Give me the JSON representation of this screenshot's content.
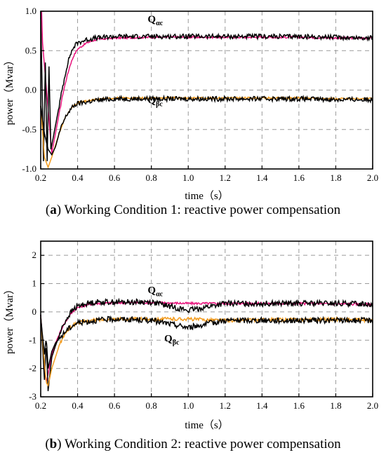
{
  "chart_data": [
    {
      "type": "line",
      "panel": "a",
      "caption_label": "a",
      "caption_text": "Working Condition 1: reactive power compensation",
      "xlabel": "time（s）",
      "ylabel": "power（Mvar）",
      "xlim": [
        0.2,
        2.0
      ],
      "ylim": [
        -1.0,
        1.0
      ],
      "x_ticks": [
        "0.2",
        "0.4",
        "0.6",
        "0.8",
        "1.0",
        "1.2",
        "1.4",
        "1.6",
        "1.8",
        "2.0"
      ],
      "y_ticks": [
        "-1.0",
        "-0.5",
        "0.0",
        "0.5",
        "1.0"
      ],
      "grid": true,
      "annotations": [
        {
          "main": "Q",
          "sub": "αc",
          "x": 0.78,
          "y": 0.86
        },
        {
          "main": "Q",
          "sub": "βc",
          "x": 0.78,
          "y": -0.17
        }
      ],
      "series": [
        {
          "color": "#e8127c",
          "values": [
            [
              0.2,
              -0.3
            ],
            [
              0.22,
              -0.8
            ],
            [
              0.24,
              -0.95
            ],
            [
              0.26,
              -0.8
            ],
            [
              0.28,
              -0.55
            ],
            [
              0.3,
              -0.3
            ],
            [
              0.32,
              -0.05
            ],
            [
              0.34,
              0.15
            ],
            [
              0.36,
              0.32
            ],
            [
              0.38,
              0.44
            ],
            [
              0.4,
              0.52
            ],
            [
              0.45,
              0.6
            ],
            [
              0.5,
              0.64
            ],
            [
              0.6,
              0.66
            ],
            [
              0.8,
              0.67
            ],
            [
              1.0,
              0.67
            ],
            [
              1.2,
              0.67
            ],
            [
              1.4,
              0.67
            ],
            [
              1.6,
              0.67
            ],
            [
              1.8,
              0.66
            ],
            [
              2.0,
              0.66
            ]
          ],
          "noise": 0.012,
          "spikes": [
            [
              0.2,
              0.9
            ],
            [
              0.205,
              1.0
            ],
            [
              0.21,
              0.6
            ]
          ]
        },
        {
          "color": "#000000",
          "values": [
            [
              0.2,
              -0.2
            ],
            [
              0.22,
              -0.3
            ],
            [
              0.24,
              -0.6
            ],
            [
              0.26,
              -0.7
            ],
            [
              0.28,
              -0.45
            ],
            [
              0.3,
              -0.2
            ],
            [
              0.32,
              0.05
            ],
            [
              0.34,
              0.28
            ],
            [
              0.36,
              0.45
            ],
            [
              0.38,
              0.55
            ],
            [
              0.4,
              0.6
            ],
            [
              0.45,
              0.64
            ],
            [
              0.5,
              0.66
            ],
            [
              0.6,
              0.68
            ],
            [
              0.8,
              0.68
            ],
            [
              1.0,
              0.68
            ],
            [
              1.2,
              0.68
            ],
            [
              1.4,
              0.68
            ],
            [
              1.6,
              0.68
            ],
            [
              1.8,
              0.67
            ],
            [
              2.0,
              0.66
            ]
          ],
          "noise": 0.03,
          "spikes": [
            [
              0.2,
              1.0
            ],
            [
              0.215,
              -0.9
            ],
            [
              0.225,
              0.35
            ],
            [
              0.235,
              -0.9
            ],
            [
              0.245,
              0.3
            ],
            [
              0.255,
              -0.75
            ]
          ]
        },
        {
          "color": "#f39c1f",
          "values": [
            [
              0.2,
              -0.2
            ],
            [
              0.22,
              -0.85
            ],
            [
              0.24,
              -0.98
            ],
            [
              0.26,
              -0.85
            ],
            [
              0.28,
              -0.7
            ],
            [
              0.3,
              -0.55
            ],
            [
              0.32,
              -0.42
            ],
            [
              0.34,
              -0.32
            ],
            [
              0.36,
              -0.25
            ],
            [
              0.38,
              -0.2
            ],
            [
              0.4,
              -0.16
            ],
            [
              0.5,
              -0.12
            ],
            [
              0.6,
              -0.1
            ],
            [
              0.8,
              -0.1
            ],
            [
              1.0,
              -0.1
            ],
            [
              1.2,
              -0.1
            ],
            [
              1.4,
              -0.1
            ],
            [
              1.6,
              -0.1
            ],
            [
              1.8,
              -0.11
            ],
            [
              2.0,
              -0.11
            ]
          ],
          "noise": 0.012,
          "spikes": []
        },
        {
          "color": "#000000",
          "values": [
            [
              0.2,
              -0.2
            ],
            [
              0.22,
              -0.55
            ],
            [
              0.24,
              -0.75
            ],
            [
              0.26,
              -0.82
            ],
            [
              0.28,
              -0.72
            ],
            [
              0.3,
              -0.55
            ],
            [
              0.32,
              -0.42
            ],
            [
              0.34,
              -0.32
            ],
            [
              0.36,
              -0.25
            ],
            [
              0.38,
              -0.2
            ],
            [
              0.4,
              -0.17
            ],
            [
              0.5,
              -0.13
            ],
            [
              0.6,
              -0.11
            ],
            [
              0.8,
              -0.11
            ],
            [
              1.0,
              -0.11
            ],
            [
              1.2,
              -0.11
            ],
            [
              1.4,
              -0.11
            ],
            [
              1.6,
              -0.11
            ],
            [
              1.8,
              -0.12
            ],
            [
              2.0,
              -0.12
            ]
          ],
          "noise": 0.03,
          "spikes": []
        }
      ]
    },
    {
      "type": "line",
      "panel": "b",
      "caption_label": "b",
      "caption_text": "Working Condition 2: reactive power compensation",
      "xlabel": "time（s）",
      "ylabel": "power（Mvar）",
      "xlim": [
        0.2,
        2.0
      ],
      "ylim": [
        -3,
        2.5
      ],
      "x_ticks": [
        "0.2",
        "0.4",
        "0.6",
        "0.8",
        "1.0",
        "1.2",
        "1.4",
        "1.6",
        "1.8",
        "2.0"
      ],
      "y_ticks": [
        "-3",
        "-2",
        "-1",
        "0",
        "1",
        "2"
      ],
      "grid": true,
      "annotations": [
        {
          "main": "Q",
          "sub": "αc",
          "x": 0.78,
          "y": 0.65
        },
        {
          "main": "Q",
          "sub": "βc",
          "x": 0.87,
          "y": -1.05
        }
      ],
      "series": [
        {
          "color": "#e8127c",
          "values": [
            [
              0.2,
              -0.1
            ],
            [
              0.22,
              -2.0
            ],
            [
              0.23,
              -2.5
            ],
            [
              0.24,
              -2.2
            ],
            [
              0.26,
              -1.5
            ],
            [
              0.28,
              -1.1
            ],
            [
              0.3,
              -0.8
            ],
            [
              0.32,
              -0.5
            ],
            [
              0.34,
              -0.3
            ],
            [
              0.36,
              -0.1
            ],
            [
              0.38,
              0.05
            ],
            [
              0.4,
              0.15
            ],
            [
              0.45,
              0.25
            ],
            [
              0.5,
              0.3
            ],
            [
              0.6,
              0.32
            ],
            [
              0.8,
              0.33
            ],
            [
              1.0,
              0.3
            ],
            [
              1.2,
              0.3
            ],
            [
              1.4,
              0.3
            ],
            [
              1.6,
              0.3
            ],
            [
              1.8,
              0.28
            ],
            [
              2.0,
              0.27
            ]
          ],
          "noise": 0.04,
          "spikes": []
        },
        {
          "color": "#000000",
          "values": [
            [
              0.2,
              -0.1
            ],
            [
              0.22,
              -2.4
            ],
            [
              0.23,
              -1.0
            ],
            [
              0.24,
              -2.8
            ],
            [
              0.26,
              -1.6
            ],
            [
              0.28,
              -1.2
            ],
            [
              0.3,
              -0.85
            ],
            [
              0.32,
              -0.5
            ],
            [
              0.34,
              -0.25
            ],
            [
              0.36,
              -0.05
            ],
            [
              0.38,
              0.1
            ],
            [
              0.4,
              0.2
            ],
            [
              0.45,
              0.3
            ],
            [
              0.5,
              0.35
            ],
            [
              0.6,
              0.35
            ],
            [
              0.8,
              0.35
            ],
            [
              1.0,
              0.05
            ],
            [
              1.2,
              0.3
            ],
            [
              1.4,
              0.3
            ],
            [
              1.6,
              0.3
            ],
            [
              1.8,
              0.3
            ],
            [
              2.0,
              0.28
            ]
          ],
          "noise": 0.1,
          "spikes": []
        },
        {
          "color": "#f39c1f",
          "values": [
            [
              0.2,
              -0.2
            ],
            [
              0.22,
              -1.8
            ],
            [
              0.23,
              -2.5
            ],
            [
              0.24,
              -2.6
            ],
            [
              0.26,
              -2.0
            ],
            [
              0.28,
              -1.6
            ],
            [
              0.3,
              -1.2
            ],
            [
              0.32,
              -0.9
            ],
            [
              0.34,
              -0.7
            ],
            [
              0.36,
              -0.55
            ],
            [
              0.38,
              -0.45
            ],
            [
              0.4,
              -0.38
            ],
            [
              0.5,
              -0.28
            ],
            [
              0.6,
              -0.25
            ],
            [
              0.8,
              -0.25
            ],
            [
              1.0,
              -0.25
            ],
            [
              1.2,
              -0.3
            ],
            [
              1.4,
              -0.28
            ],
            [
              1.6,
              -0.27
            ],
            [
              1.8,
              -0.26
            ],
            [
              2.0,
              -0.3
            ]
          ],
          "noise": 0.06,
          "spikes": []
        },
        {
          "color": "#000000",
          "values": [
            [
              0.2,
              -0.2
            ],
            [
              0.22,
              -1.5
            ],
            [
              0.23,
              -0.9
            ],
            [
              0.24,
              -2.0
            ],
            [
              0.26,
              -1.4
            ],
            [
              0.28,
              -1.1
            ],
            [
              0.3,
              -0.95
            ],
            [
              0.32,
              -0.8
            ],
            [
              0.34,
              -0.65
            ],
            [
              0.36,
              -0.55
            ],
            [
              0.38,
              -0.45
            ],
            [
              0.4,
              -0.38
            ],
            [
              0.5,
              -0.3
            ],
            [
              0.6,
              -0.25
            ],
            [
              0.8,
              -0.3
            ],
            [
              1.0,
              -0.55
            ],
            [
              1.2,
              -0.3
            ],
            [
              1.4,
              -0.3
            ],
            [
              1.6,
              -0.3
            ],
            [
              1.8,
              -0.3
            ],
            [
              2.0,
              -0.3
            ]
          ],
          "noise": 0.1,
          "spikes": []
        }
      ]
    }
  ]
}
